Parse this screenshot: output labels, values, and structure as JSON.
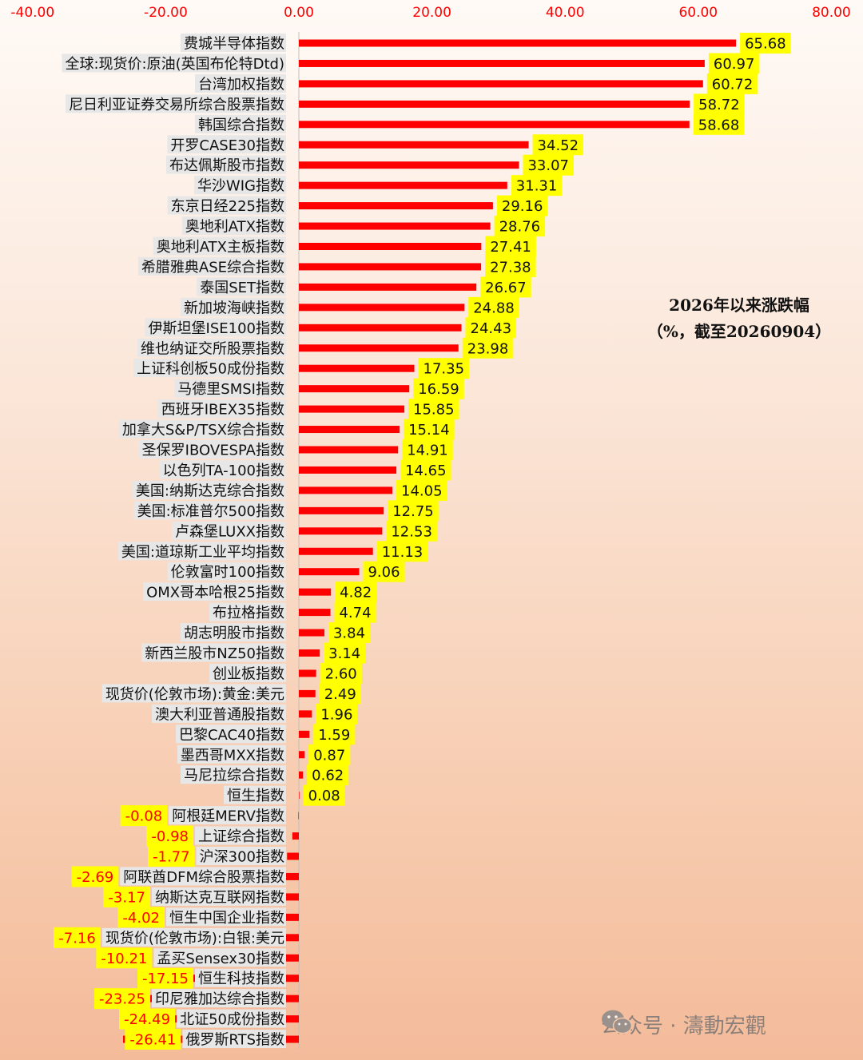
{
  "chart_data": {
    "type": "bar",
    "orientation": "horizontal",
    "title": "2026年以来涨跌幅",
    "subtitle": "（%，截至20260904）",
    "xlim": [
      -40,
      80
    ],
    "xticks": [
      "-40.00",
      "-20.00",
      "0.00",
      "20.00",
      "40.00",
      "60.00",
      "80.00"
    ],
    "xtick_values": [
      -40,
      -20,
      0,
      20,
      40,
      60,
      80
    ],
    "categories": [
      "费城半导体指数",
      "全球:现货价:原油(英国布伦特Dtd)",
      "台湾加权指数",
      "尼日利亚证券交易所综合股票指数",
      "韩国综合指数",
      "开罗CASE30指数",
      "布达佩斯股市指数",
      "华沙WIG指数",
      "东京日经225指数",
      "奥地利ATX指数",
      "奥地利ATX主板指数",
      "希腊雅典ASE综合指数",
      "泰国SET指数",
      "新加坡海峡指数",
      "伊斯坦堡ISE100指数",
      "维也纳证交所股票指数",
      "上证科创板50成份指数",
      "马德里SMSI指数",
      "西班牙IBEX35指数",
      "加拿大S&P/TSX综合指数",
      "圣保罗IBOVESPA指数",
      "以色列TA-100指数",
      "美国:纳斯达克综合指数",
      "美国:标准普尔500指数",
      "卢森堡LUXX指数",
      "美国:道琼斯工业平均指数",
      "伦敦富时100指数",
      "OMX哥本哈根25指数",
      "布拉格指数",
      "胡志明股市指数",
      "新西兰股市NZ50指数",
      "创业板指数",
      "现货价(伦敦市场):黄金:美元",
      "澳大利亚普通股指数",
      "巴黎CAC40指数",
      "墨西哥MXX指数",
      "马尼拉综合指数",
      "恒生指数",
      "阿根廷MERV指数",
      "上证综合指数",
      "沪深300指数",
      "阿联酋DFM综合股票指数",
      "纳斯达克互联网指数",
      "恒生中国企业指数",
      "现货价(伦敦市场):白银:美元",
      "孟买Sensex30指数",
      "恒生科技指数",
      "印尼雅加达综合指数",
      "北证50成份指数",
      "俄罗斯RTS指数"
    ],
    "values": [
      65.68,
      60.97,
      60.72,
      58.72,
      58.68,
      34.52,
      33.07,
      31.31,
      29.16,
      28.76,
      27.41,
      27.38,
      26.67,
      24.88,
      24.43,
      23.98,
      17.35,
      16.59,
      15.85,
      15.14,
      14.91,
      14.65,
      14.05,
      12.75,
      12.53,
      11.13,
      9.06,
      4.82,
      4.74,
      3.84,
      3.14,
      2.6,
      2.49,
      1.96,
      1.59,
      0.87,
      0.62,
      0.08,
      -0.08,
      -0.98,
      -1.77,
      -2.69,
      -3.17,
      -4.02,
      -7.16,
      -10.21,
      -17.15,
      -23.25,
      -24.49,
      -26.41
    ],
    "value_labels": [
      "65.68",
      "60.97",
      "60.72",
      "58.72",
      "58.68",
      "34.52",
      "33.07",
      "31.31",
      "29.16",
      "28.76",
      "27.41",
      "27.38",
      "26.67",
      "24.88",
      "24.43",
      "23.98",
      "17.35",
      "16.59",
      "15.85",
      "15.14",
      "14.91",
      "14.65",
      "14.05",
      "12.75",
      "12.53",
      "11.13",
      "9.06",
      "4.82",
      "4.74",
      "3.84",
      "3.14",
      "2.60",
      "2.49",
      "1.96",
      "1.59",
      "0.87",
      "0.62",
      "0.08",
      "-0.08",
      "-0.98",
      "-1.77",
      "-2.69",
      "-3.17",
      "-4.02",
      "-7.16",
      "-10.21",
      "-17.15",
      "-23.25",
      "-24.49",
      "-26.41"
    ],
    "colors": {
      "bar": "#ff0000",
      "label_bg": "#ffff00",
      "positive_label_text": "#111111",
      "negative_label_text": "#ff0000",
      "tick_text": "#ff0000",
      "category_bg": "#e7e7e7"
    },
    "grid": false
  },
  "watermark": {
    "icon": "wechat-icon",
    "text": "公众号 · 濤動宏觀"
  }
}
